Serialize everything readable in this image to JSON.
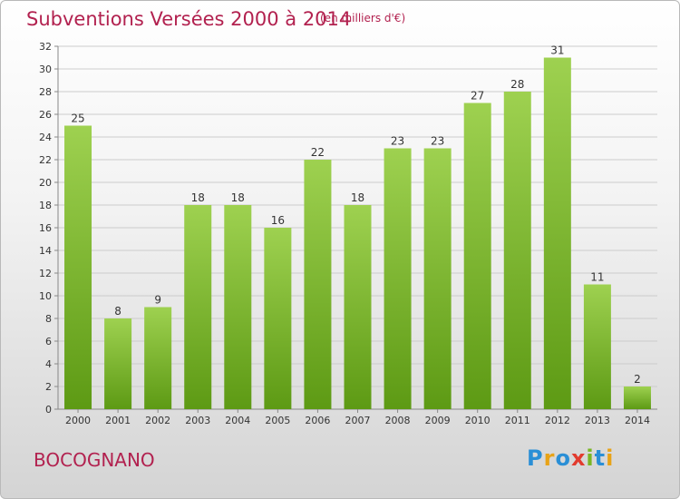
{
  "header": {
    "title": "Subventions Versées 2000 à 2014",
    "subtitle": "(en milliers d'€)"
  },
  "footer": {
    "commune": "BOCOGNANO",
    "logo": "Proxiti"
  },
  "colors": {
    "title": "#b2214f",
    "bar_top": "#9ed150",
    "bar_bottom": "#5d9a14",
    "grid": "#cccccc"
  },
  "chart_data": {
    "type": "bar",
    "categories": [
      "2000",
      "2001",
      "2002",
      "2003",
      "2004",
      "2005",
      "2006",
      "2007",
      "2008",
      "2009",
      "2010",
      "2011",
      "2012",
      "2013",
      "2014"
    ],
    "values": [
      25,
      8,
      9,
      18,
      18,
      16,
      22,
      18,
      23,
      23,
      27,
      28,
      31,
      11,
      2
    ],
    "ylim": [
      0,
      32
    ],
    "yticks": [
      0,
      2,
      4,
      6,
      8,
      10,
      12,
      14,
      16,
      18,
      20,
      22,
      24,
      26,
      28,
      30,
      32
    ],
    "grid": true
  }
}
